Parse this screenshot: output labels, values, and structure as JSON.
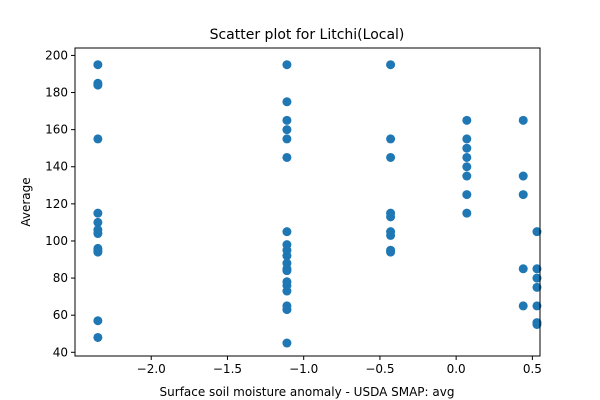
{
  "chart_data": {
    "type": "scatter",
    "title": "Scatter plot for Litchi(Local)",
    "xlabel": "Surface soil moisture anomaly  - USDA SMAP: avg",
    "ylabel": "Average",
    "xlim": [
      -2.5,
      0.55
    ],
    "ylim": [
      38,
      204
    ],
    "xticks": [
      -2.0,
      -1.5,
      -1.0,
      -0.5,
      0.0,
      0.5
    ],
    "xtick_labels": [
      "−2.0",
      "−1.5",
      "−1.0",
      "−0.5",
      "0.0",
      "0.5"
    ],
    "yticks": [
      40,
      60,
      80,
      100,
      120,
      140,
      160,
      180,
      200
    ],
    "ytick_labels": [
      "40",
      "60",
      "80",
      "100",
      "120",
      "140",
      "160",
      "180",
      "200"
    ],
    "grid": false,
    "marker_color": "#1f77b4",
    "series": [
      {
        "points": [
          [
            -2.35,
            195
          ],
          [
            -2.35,
            185
          ],
          [
            -2.35,
            184
          ],
          [
            -2.35,
            155
          ],
          [
            -2.35,
            115
          ],
          [
            -2.35,
            110
          ],
          [
            -2.35,
            106
          ],
          [
            -2.35,
            104
          ],
          [
            -2.35,
            96
          ],
          [
            -2.35,
            95
          ],
          [
            -2.35,
            94
          ],
          [
            -2.35,
            57
          ],
          [
            -2.35,
            48
          ],
          [
            -1.11,
            195
          ],
          [
            -1.11,
            175
          ],
          [
            -1.11,
            165
          ],
          [
            -1.11,
            160
          ],
          [
            -1.11,
            155
          ],
          [
            -1.11,
            145
          ],
          [
            -1.11,
            105
          ],
          [
            -1.11,
            98
          ],
          [
            -1.11,
            95
          ],
          [
            -1.11,
            92
          ],
          [
            -1.11,
            88
          ],
          [
            -1.11,
            85
          ],
          [
            -1.11,
            84
          ],
          [
            -1.11,
            78
          ],
          [
            -1.11,
            76
          ],
          [
            -1.11,
            73
          ],
          [
            -1.11,
            65
          ],
          [
            -1.11,
            63
          ],
          [
            -1.11,
            45
          ],
          [
            -0.43,
            195
          ],
          [
            -0.43,
            155
          ],
          [
            -0.43,
            145
          ],
          [
            -0.43,
            115
          ],
          [
            -0.43,
            113
          ],
          [
            -0.43,
            105
          ],
          [
            -0.43,
            103
          ],
          [
            -0.43,
            95
          ],
          [
            -0.43,
            94
          ],
          [
            0.07,
            165
          ],
          [
            0.07,
            155
          ],
          [
            0.07,
            150
          ],
          [
            0.07,
            145
          ],
          [
            0.07,
            140
          ],
          [
            0.07,
            135
          ],
          [
            0.07,
            125
          ],
          [
            0.07,
            115
          ],
          [
            0.44,
            165
          ],
          [
            0.44,
            135
          ],
          [
            0.44,
            125
          ],
          [
            0.44,
            85
          ],
          [
            0.44,
            65
          ],
          [
            0.53,
            105
          ],
          [
            0.53,
            85
          ],
          [
            0.53,
            80
          ],
          [
            0.53,
            75
          ],
          [
            0.53,
            65
          ],
          [
            0.53,
            56
          ],
          [
            0.53,
            55
          ]
        ]
      }
    ]
  }
}
